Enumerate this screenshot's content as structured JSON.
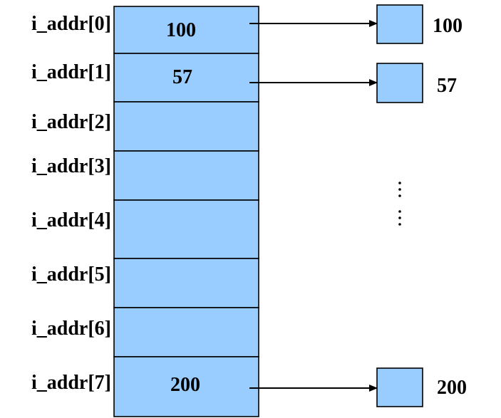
{
  "colors": {
    "fill": "#99ccff",
    "stroke": "#000000"
  },
  "array": {
    "labels": [
      "i_addr[0]",
      "i_addr[1]",
      "i_addr[2]",
      "i_addr[3]",
      "i_addr[4]",
      "i_addr[5]",
      "i_addr[6]",
      "i_addr[7]"
    ],
    "values": [
      "100",
      "57",
      "",
      "",
      "",
      "",
      "",
      "200"
    ]
  },
  "targets": [
    {
      "from_index": 0,
      "label": "100"
    },
    {
      "from_index": 1,
      "label": "57"
    },
    {
      "from_index": 7,
      "label": "200"
    }
  ],
  "ellipsis": "⋮"
}
